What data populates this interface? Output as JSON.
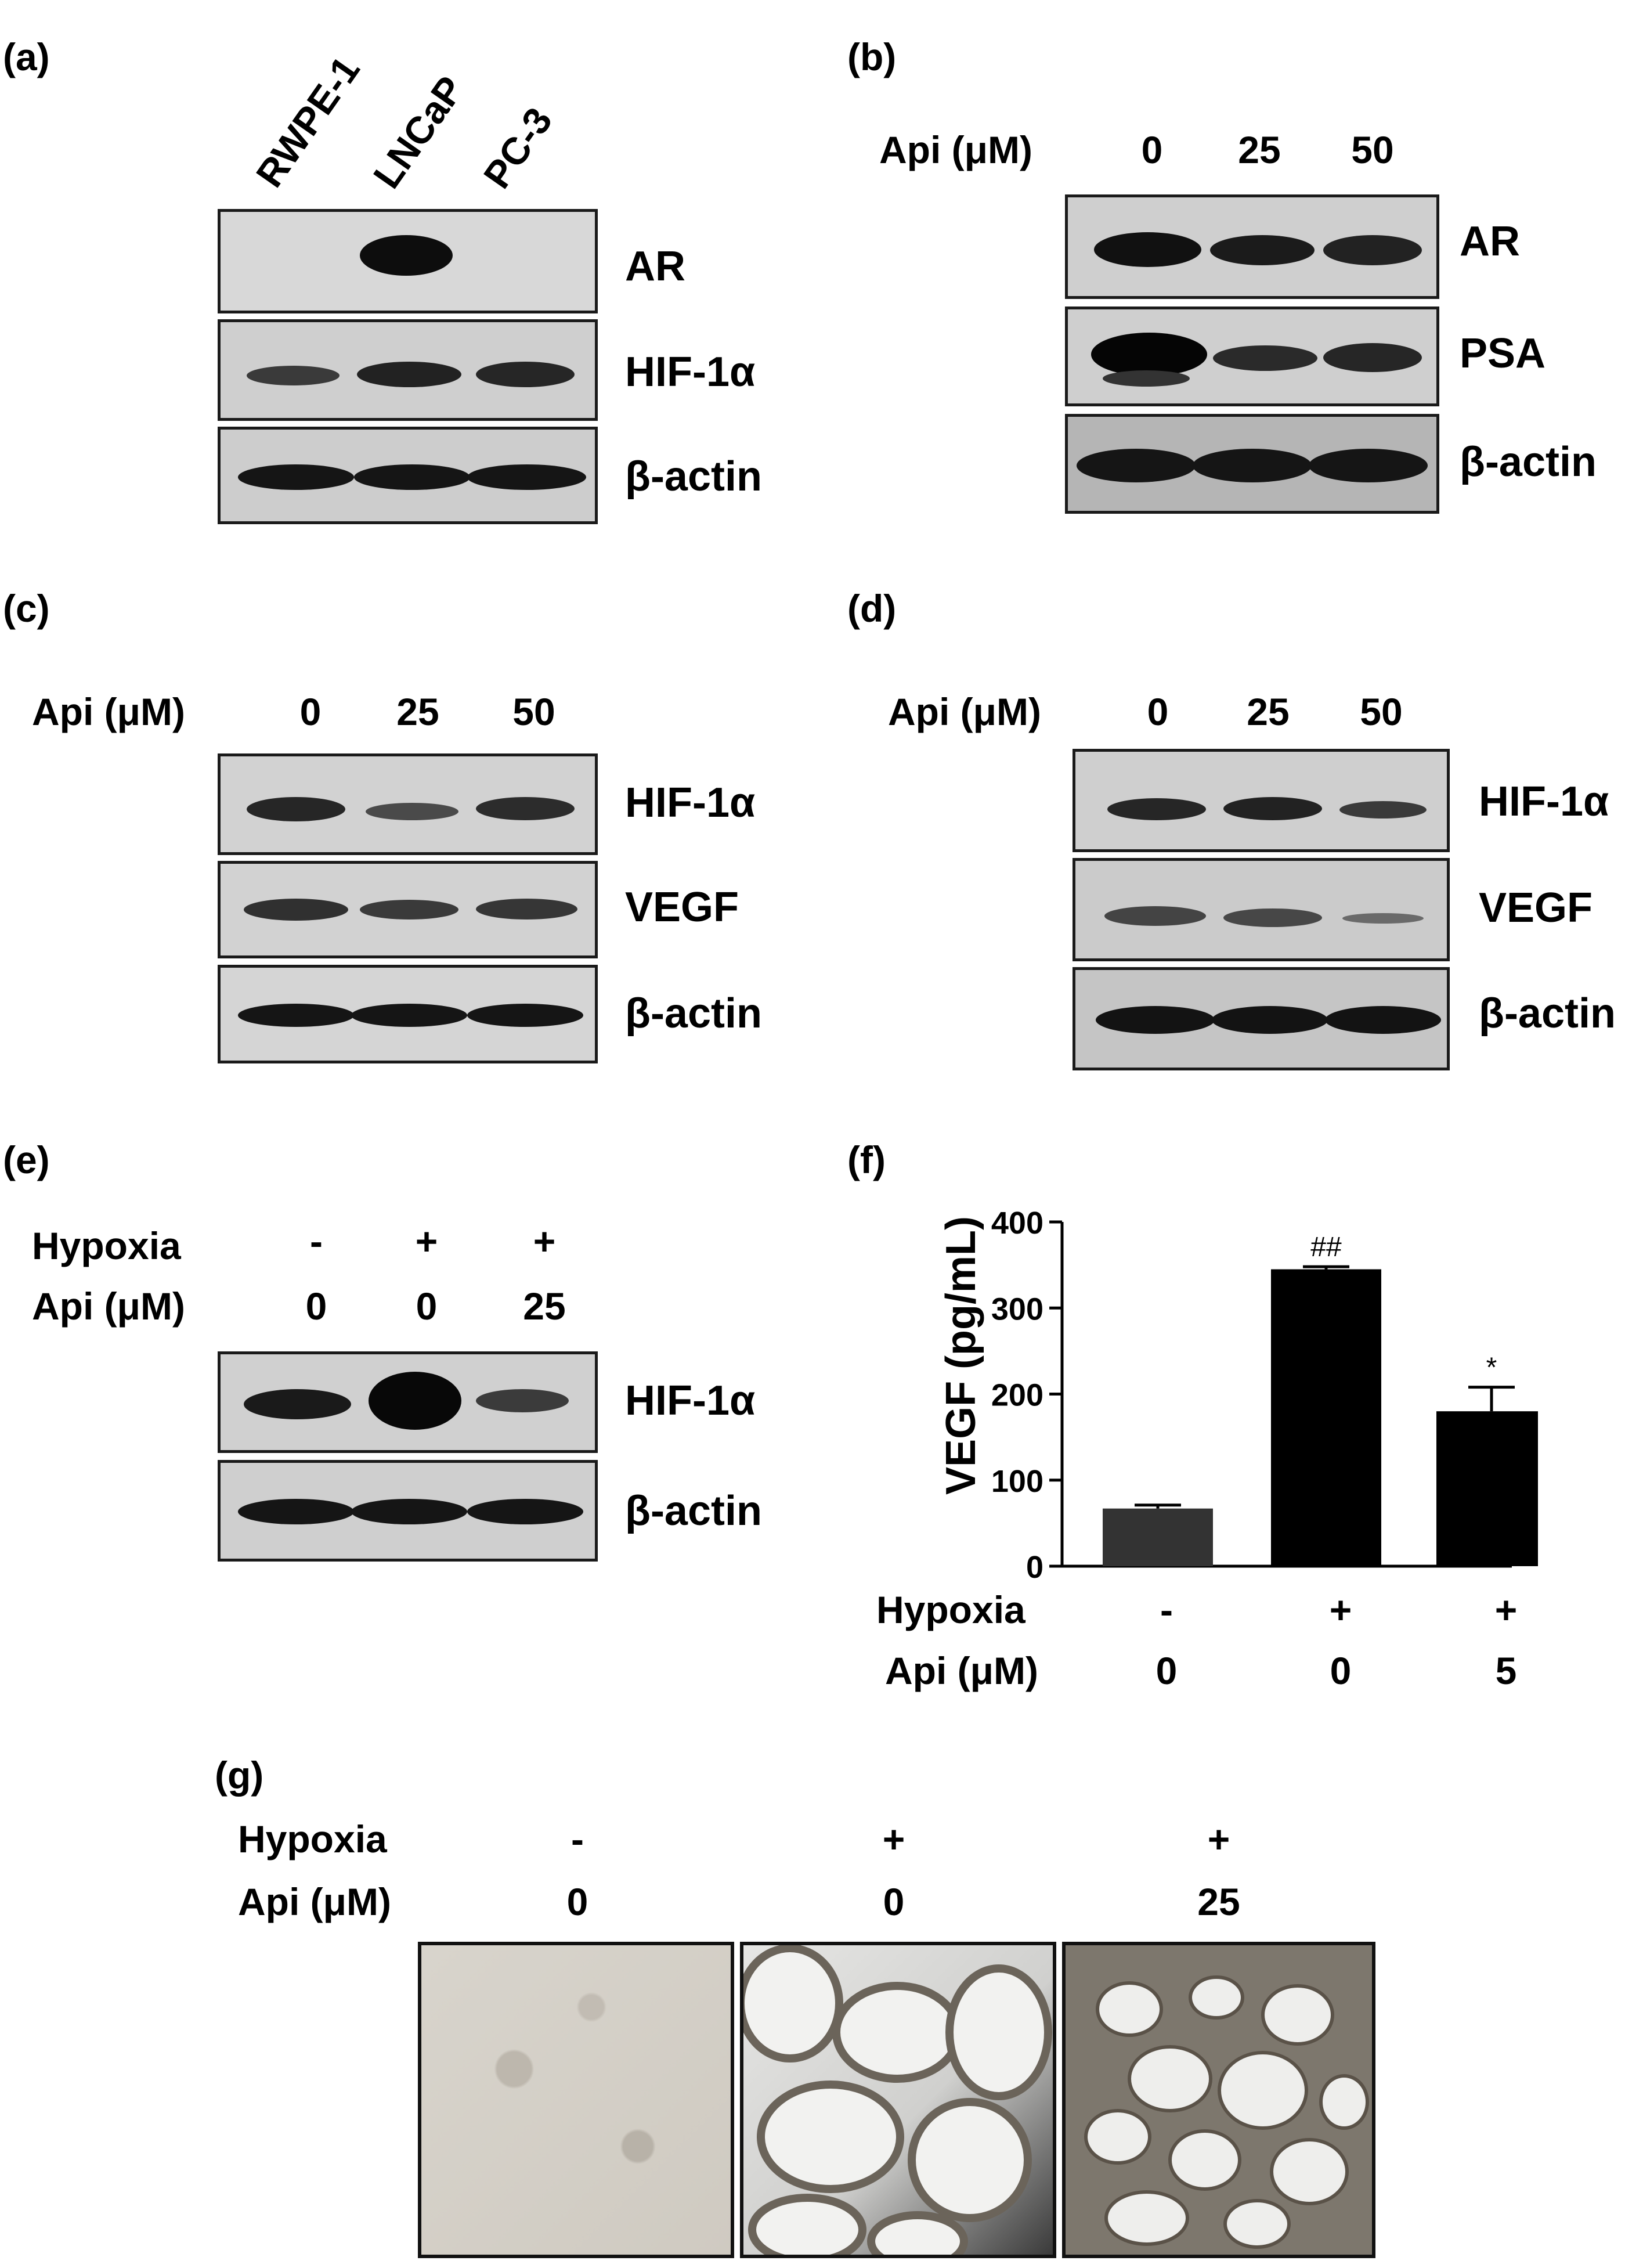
{
  "panels": {
    "a": {
      "label": "(a)",
      "cell_lines": [
        "RWPE-1",
        "LNCaP",
        "PC-3"
      ],
      "proteins": [
        "AR",
        "HIF-1α",
        "β-actin"
      ]
    },
    "b": {
      "label": "(b)",
      "treatment_label": "Api (μM)",
      "doses": [
        "0",
        "25",
        "50"
      ],
      "proteins": [
        "AR",
        "PSA",
        "β-actin"
      ]
    },
    "c": {
      "label": "(c)",
      "treatment_label": "Api (μM)",
      "doses": [
        "0",
        "25",
        "50"
      ],
      "proteins": [
        "HIF-1α",
        "VEGF",
        "β-actin"
      ]
    },
    "d": {
      "label": "(d)",
      "treatment_label": "Api (μM)",
      "doses": [
        "0",
        "25",
        "50"
      ],
      "proteins": [
        "HIF-1α",
        "VEGF",
        "β-actin"
      ]
    },
    "e": {
      "label": "(e)",
      "row1_label": "Hypoxia",
      "row1_values": [
        "-",
        "+",
        "+"
      ],
      "row2_label": "Api (μM)",
      "row2_values": [
        "0",
        "0",
        "25"
      ],
      "proteins": [
        "HIF-1α",
        "β-actin"
      ]
    },
    "f": {
      "label": "(f)",
      "row1_label": "Hypoxia",
      "row1_values": [
        "-",
        "+",
        "+"
      ],
      "row2_label": "Api (μM)",
      "row2_values": [
        "0",
        "0",
        "5"
      ]
    },
    "g": {
      "label": "(g)",
      "row1_label": "Hypoxia",
      "row1_values": [
        "-",
        "+",
        "+"
      ],
      "row2_label": "Api (μM)",
      "row2_values": [
        "0",
        "0",
        "25"
      ]
    }
  },
  "chart_data": {
    "type": "bar",
    "ylabel": "VEGF (pg/mL)",
    "ylim": [
      0,
      400
    ],
    "yticks": [
      "0",
      "100",
      "200",
      "300",
      "400"
    ],
    "values": [
      67,
      345,
      180
    ],
    "errors": [
      4,
      3,
      28
    ],
    "annotations": [
      "",
      "##",
      "*"
    ],
    "colors": [
      "#333333",
      "#000000",
      "#000000"
    ]
  }
}
